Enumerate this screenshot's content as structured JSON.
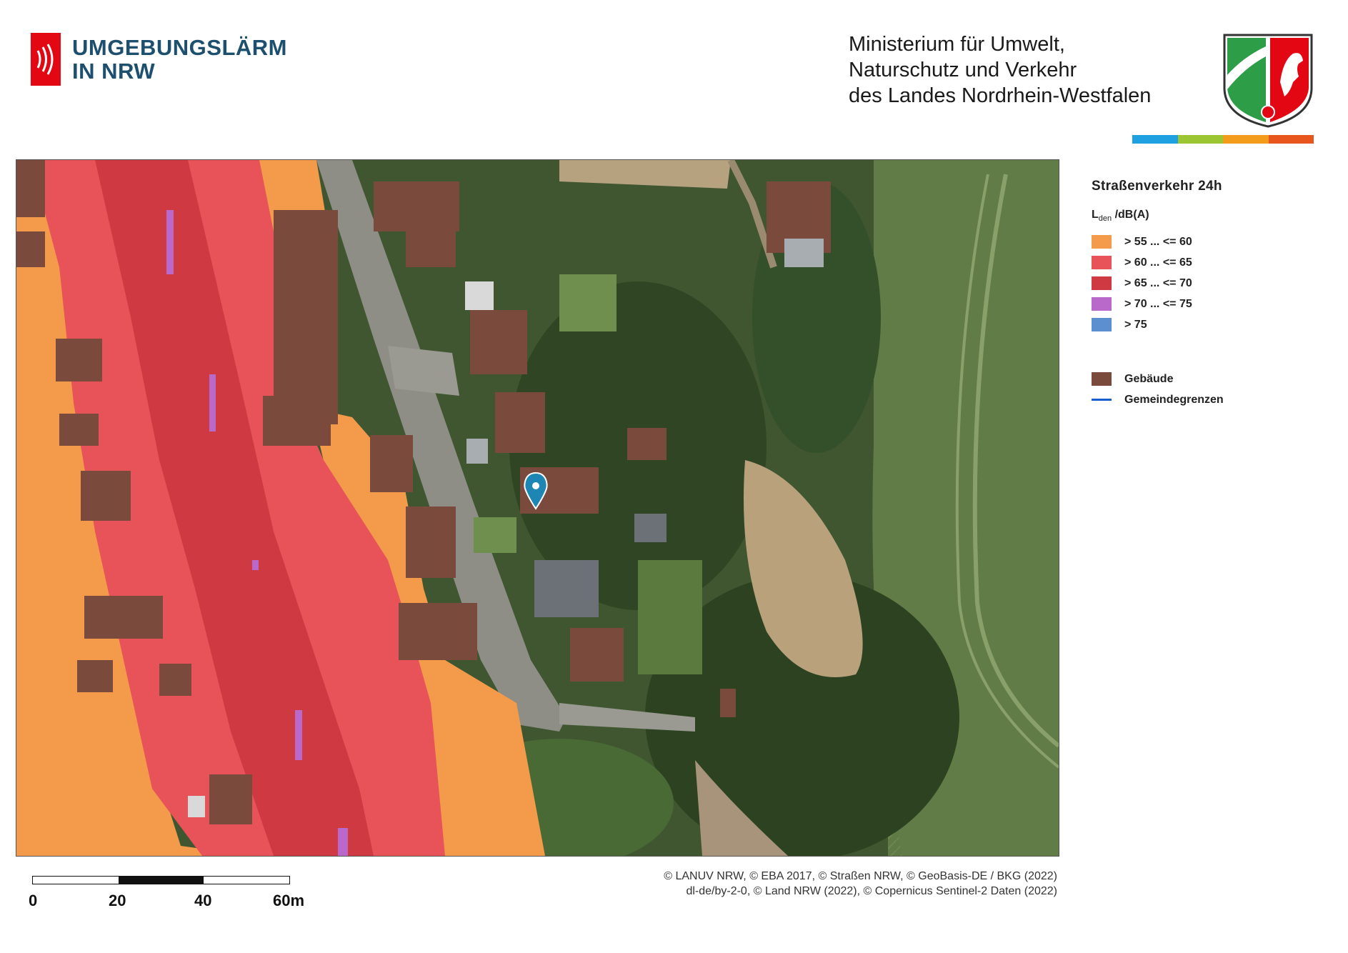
{
  "header": {
    "logo_line1": "UMGEBUNGSLÄRM",
    "logo_line2": "IN NRW",
    "ministry_line1": "Ministerium für Umwelt,",
    "ministry_line2": "Naturschutz und Verkehr",
    "ministry_line3": "des Landes Nordrhein-Westfalen"
  },
  "colors": {
    "brand_red": "#e30613",
    "brand_blue": "#1d4f6e",
    "bar": [
      "#1fa0e0",
      "#9cc631",
      "#f39c1b",
      "#e8551d"
    ],
    "noise_55_60": "#f39a4b",
    "noise_60_65": "#e8535a",
    "noise_65_70": "#cf3a42",
    "noise_70_75": "#b969c9",
    "noise_75": "#5b8fd0",
    "building": "#7a4a3c",
    "boundary": "#1a5fd0"
  },
  "legend": {
    "title": "Straßenverkehr 24h",
    "unit_main": "L",
    "unit_sub": "den",
    "unit_rest": " /dB(A)",
    "classes": [
      {
        "label": "> 55 ... <= 60",
        "color": "#f39a4b"
      },
      {
        "label": "> 60 ... <= 65",
        "color": "#e8535a"
      },
      {
        "label": "> 65 ... <= 70",
        "color": "#cf3a42"
      },
      {
        "label": "> 70 ... <= 75",
        "color": "#b969c9"
      },
      {
        "label": "> 75",
        "color": "#5b8fd0"
      }
    ],
    "building_label": "Gebäude",
    "boundary_label": "Gemeindegrenzen"
  },
  "map": {
    "marker_icon": "location-pin-icon"
  },
  "scale": {
    "labels": [
      "0",
      "20",
      "40",
      "60m"
    ]
  },
  "credits": {
    "line1": "© LANUV NRW, © EBA 2017, © Straßen NRW, © GeoBasis-DE / BKG (2022)",
    "line2": "dl-de/by-2-0, © Land NRW (2022), © Copernicus Sentinel-2 Daten (2022)"
  }
}
